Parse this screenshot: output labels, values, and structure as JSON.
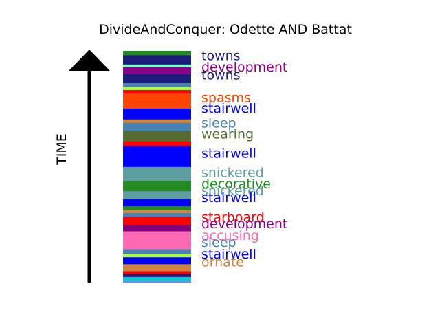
{
  "chart_data": {
    "type": "bar",
    "title": "DivideAndConquer: Odette AND Battat",
    "ylabel": "TIME",
    "ylim": [
      0,
      1
    ],
    "axis_direction": "up",
    "segments": [
      {
        "start": 0.0,
        "end": 0.012,
        "color": "#6495ED"
      },
      {
        "start": 0.012,
        "end": 0.025,
        "color": "#00CED1"
      },
      {
        "start": 0.025,
        "end": 0.038,
        "color": "#1C1C7A"
      },
      {
        "start": 0.038,
        "end": 0.05,
        "color": "#FF0000"
      },
      {
        "start": 0.05,
        "end": 0.063,
        "color": "#CD853F"
      },
      {
        "start": 0.063,
        "end": 0.08,
        "color": "#CD853F"
      },
      {
        "start": 0.08,
        "end": 0.097,
        "color": "#0000FF"
      },
      {
        "start": 0.097,
        "end": 0.11,
        "color": "#0000FF"
      },
      {
        "start": 0.11,
        "end": 0.125,
        "color": "#ADFF2F"
      },
      {
        "start": 0.125,
        "end": 0.145,
        "color": "#4682B4"
      },
      {
        "start": 0.145,
        "end": 0.175,
        "color": "#FF69B4"
      },
      {
        "start": 0.175,
        "end": 0.222,
        "color": "#FF69B4"
      },
      {
        "start": 0.222,
        "end": 0.25,
        "color": "#800080"
      },
      {
        "start": 0.25,
        "end": 0.265,
        "color": "#FF0000"
      },
      {
        "start": 0.265,
        "end": 0.285,
        "color": "#FF0000"
      },
      {
        "start": 0.285,
        "end": 0.3,
        "color": "#4682B4"
      },
      {
        "start": 0.3,
        "end": 0.313,
        "color": "#CD853F"
      },
      {
        "start": 0.313,
        "end": 0.33,
        "color": "#228B22"
      },
      {
        "start": 0.33,
        "end": 0.36,
        "color": "#0000FF"
      },
      {
        "start": 0.36,
        "end": 0.395,
        "color": "#5F9EA0"
      },
      {
        "start": 0.395,
        "end": 0.44,
        "color": "#228B22"
      },
      {
        "start": 0.44,
        "end": 0.5,
        "color": "#5F9EA0"
      },
      {
        "start": 0.5,
        "end": 0.59,
        "color": "#0000FF"
      },
      {
        "start": 0.59,
        "end": 0.61,
        "color": "#FF0000"
      },
      {
        "start": 0.61,
        "end": 0.655,
        "color": "#556B2F"
      },
      {
        "start": 0.655,
        "end": 0.69,
        "color": "#4682B4"
      },
      {
        "start": 0.69,
        "end": 0.705,
        "color": "#CD853F"
      },
      {
        "start": 0.705,
        "end": 0.752,
        "color": "#0000FF"
      },
      {
        "start": 0.752,
        "end": 0.82,
        "color": "#FF4500"
      },
      {
        "start": 0.82,
        "end": 0.832,
        "color": "#FF0000"
      },
      {
        "start": 0.832,
        "end": 0.845,
        "color": "#ADFF2F"
      },
      {
        "start": 0.845,
        "end": 0.863,
        "color": "#4682B4"
      },
      {
        "start": 0.863,
        "end": 0.9,
        "color": "#1C1C7A"
      },
      {
        "start": 0.9,
        "end": 0.93,
        "color": "#8B008B"
      },
      {
        "start": 0.93,
        "end": 0.942,
        "color": "#7FFFD4"
      },
      {
        "start": 0.942,
        "end": 0.982,
        "color": "#1C1C7A"
      },
      {
        "start": 0.982,
        "end": 1.0,
        "color": "#228B22"
      }
    ],
    "labels": [
      {
        "text": "towns",
        "pos": 0.981,
        "color": "#1C1C7A"
      },
      {
        "text": "development",
        "pos": 0.932,
        "color": "#8B008B"
      },
      {
        "text": "towns",
        "pos": 0.897,
        "color": "#1C1C7A"
      },
      {
        "text": "spasms",
        "pos": 0.8,
        "color": "#FF4500"
      },
      {
        "text": "stairwell",
        "pos": 0.753,
        "color": "#0000FF"
      },
      {
        "text": "sleep",
        "pos": 0.69,
        "color": "#4682B4"
      },
      {
        "text": "wearing",
        "pos": 0.642,
        "color": "#556B2F"
      },
      {
        "text": "stairwell",
        "pos": 0.56,
        "color": "#0000FF"
      },
      {
        "text": "snickered",
        "pos": 0.477,
        "color": "#5F9EA0"
      },
      {
        "text": "decorative",
        "pos": 0.428,
        "color": "#228B22"
      },
      {
        "text": "snickered",
        "pos": 0.397,
        "color": "#5F9EA0"
      },
      {
        "text": "stairwell",
        "pos": 0.368,
        "color": "#0000FF"
      },
      {
        "text": "starboard",
        "pos": 0.283,
        "color": "#FF0000"
      },
      {
        "text": "development",
        "pos": 0.255,
        "color": "#8B008B"
      },
      {
        "text": "accusing",
        "pos": 0.205,
        "color": "#FF69B4"
      },
      {
        "text": "sleep",
        "pos": 0.175,
        "color": "#4682B4"
      },
      {
        "text": "stairwell",
        "pos": 0.125,
        "color": "#0000FF"
      },
      {
        "text": "ornate",
        "pos": 0.09,
        "color": "#CD853F"
      }
    ]
  }
}
